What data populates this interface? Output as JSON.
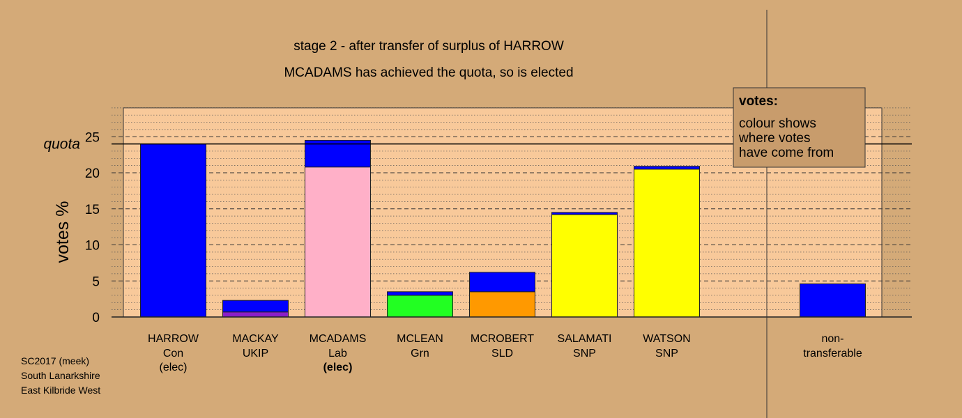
{
  "chart_data": {
    "type": "bar",
    "title": "stage 2 - after transfer of surplus of HARROW",
    "subtitle": "MCADAMS has achieved the quota, so is elected",
    "ylabel": "votes %",
    "ylim": [
      0,
      29
    ],
    "yticks": [
      0,
      5,
      10,
      15,
      20,
      25
    ],
    "quota": 24,
    "quota_label": "quota",
    "candidates": [
      {
        "name": "HARROW",
        "party": "Con",
        "status": "(elec)",
        "status_bold": false,
        "segments": [
          {
            "value": 24,
            "color": "#0000ff"
          }
        ]
      },
      {
        "name": "MACKAY",
        "party": "UKIP",
        "status": "",
        "status_bold": false,
        "segments": [
          {
            "value": 0.7,
            "color": "#8b1ec8"
          },
          {
            "value": 1.6,
            "color": "#0000ff"
          }
        ]
      },
      {
        "name": "MCADAMS",
        "party": "Lab",
        "status": "(elec)",
        "status_bold": true,
        "segments": [
          {
            "value": 20.8,
            "color": "#ffb0c8"
          },
          {
            "value": 3.7,
            "color": "#0000ff"
          }
        ]
      },
      {
        "name": "MCLEAN",
        "party": "Grn",
        "status": "",
        "status_bold": false,
        "segments": [
          {
            "value": 3.0,
            "color": "#22ff22"
          },
          {
            "value": 0.5,
            "color": "#0000ff"
          }
        ]
      },
      {
        "name": "MCROBERT",
        "party": "SLD",
        "status": "",
        "status_bold": false,
        "segments": [
          {
            "value": 3.5,
            "color": "#ff9900"
          },
          {
            "value": 2.7,
            "color": "#0000ff"
          }
        ]
      },
      {
        "name": "SALAMATI",
        "party": "SNP",
        "status": "",
        "status_bold": false,
        "segments": [
          {
            "value": 14.2,
            "color": "#ffff00"
          },
          {
            "value": 0.3,
            "color": "#0000ff"
          }
        ]
      },
      {
        "name": "WATSON",
        "party": "SNP",
        "status": "",
        "status_bold": false,
        "segments": [
          {
            "value": 20.5,
            "color": "#ffff00"
          },
          {
            "value": 0.4,
            "color": "#0000ff"
          }
        ]
      }
    ],
    "nontransferable": {
      "label_line1": "non-",
      "label_line2": "transferable",
      "segments": [
        {
          "value": 4.6,
          "color": "#0000ff"
        }
      ]
    },
    "legend": {
      "title": "votes:",
      "lines": [
        "colour shows",
        "where votes",
        "have come from"
      ]
    },
    "colors": {
      "background": "#d4aa78",
      "plot_area": "#f8c99a",
      "legend_bg": "#c89c6c"
    }
  },
  "footer": {
    "line1": "SC2017 (meek)",
    "line2": "South Lanarkshire",
    "line3": "East Kilbride West"
  }
}
